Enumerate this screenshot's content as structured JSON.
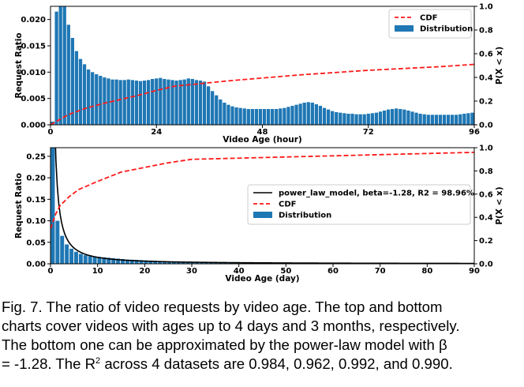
{
  "chart_data": [
    {
      "type": "bar",
      "xlabel": "Video Age (hour)",
      "ylabel": "Request Ratio",
      "y2label": "P(X < x)",
      "xlim": [
        0,
        96
      ],
      "ylim": [
        0,
        0.0225
      ],
      "y2lim": [
        0,
        1.0
      ],
      "xticks": [
        {
          "value": 0,
          "label": "0"
        },
        {
          "value": 24,
          "label": "24"
        },
        {
          "value": 48,
          "label": "48"
        },
        {
          "value": 72,
          "label": "72"
        },
        {
          "value": 96,
          "label": "96"
        }
      ],
      "yticks": [
        {
          "value": 0,
          "label": "0.000"
        },
        {
          "value": 0.005,
          "label": "0.005"
        },
        {
          "value": 0.01,
          "label": "0.010"
        },
        {
          "value": 0.015,
          "label": "0.015"
        },
        {
          "value": 0.02,
          "label": "0.020"
        }
      ],
      "y2ticks": [
        {
          "value": 0,
          "label": "0.0"
        },
        {
          "value": 0.2,
          "label": "0.2"
        },
        {
          "value": 0.4,
          "label": "0.4"
        },
        {
          "value": 0.6,
          "label": "0.6"
        },
        {
          "value": 0.8,
          "label": "0.8"
        },
        {
          "value": 1.0,
          "label": "1.0"
        }
      ],
      "legend_position": "top-right",
      "series": [
        {
          "name": "CDF",
          "kind": "line",
          "axis": "right",
          "style": "dashed",
          "color": "#ff1a1a",
          "x": [
            0,
            4,
            8,
            12,
            16,
            20,
            24,
            28,
            32,
            36,
            40,
            48,
            56,
            64,
            72,
            80,
            88,
            96
          ],
          "y": [
            0.0,
            0.085,
            0.14,
            0.18,
            0.215,
            0.25,
            0.29,
            0.325,
            0.34,
            0.355,
            0.37,
            0.395,
            0.42,
            0.44,
            0.46,
            0.475,
            0.49,
            0.51
          ]
        },
        {
          "name": "Distribution",
          "kind": "bar",
          "axis": "left",
          "color": "#1f77b4",
          "values": [
            0.0006,
            0.0215,
            0.0235,
            0.0225,
            0.019,
            0.0165,
            0.014,
            0.0125,
            0.0115,
            0.0105,
            0.01,
            0.0096,
            0.0093,
            0.009,
            0.0088,
            0.0086,
            0.0086,
            0.0085,
            0.0085,
            0.0086,
            0.0085,
            0.0084,
            0.0083,
            0.0084,
            0.0085,
            0.0087,
            0.0088,
            0.0089,
            0.0087,
            0.0086,
            0.0085,
            0.0084,
            0.0085,
            0.0086,
            0.0088,
            0.0087,
            0.0085,
            0.0084,
            0.0082,
            0.0073,
            0.0064,
            0.0056,
            0.0048,
            0.0042,
            0.0038,
            0.0035,
            0.0033,
            0.0032,
            0.0031,
            0.003,
            0.003,
            0.003,
            0.003,
            0.003,
            0.003,
            0.003,
            0.003,
            0.0031,
            0.0032,
            0.0034,
            0.0036,
            0.0038,
            0.004,
            0.0042,
            0.0043,
            0.0042,
            0.0039,
            0.0036,
            0.0032,
            0.0029,
            0.0026,
            0.0024,
            0.0023,
            0.0022,
            0.0021,
            0.0021,
            0.002,
            0.002,
            0.002,
            0.0021,
            0.0022,
            0.0023,
            0.0025,
            0.0027,
            0.0029,
            0.003,
            0.0031,
            0.003,
            0.0029,
            0.0027,
            0.0025,
            0.0023,
            0.0021,
            0.002,
            0.0019,
            0.0019,
            0.0019,
            0.0019,
            0.0019,
            0.0019,
            0.0019,
            0.0019,
            0.002,
            0.0021,
            0.0022,
            0.0023
          ]
        }
      ]
    },
    {
      "type": "bar",
      "xlabel": "Video Age (day)",
      "ylabel": "Request Ratio",
      "y2label": "P(X < x)",
      "xlim": [
        0,
        90
      ],
      "ylim": [
        0,
        0.27
      ],
      "y2lim": [
        0,
        1.0
      ],
      "xticks": [
        {
          "value": 0,
          "label": "0"
        },
        {
          "value": 10,
          "label": "10"
        },
        {
          "value": 20,
          "label": "20"
        },
        {
          "value": 30,
          "label": "30"
        },
        {
          "value": 40,
          "label": "40"
        },
        {
          "value": 50,
          "label": "50"
        },
        {
          "value": 60,
          "label": "60"
        },
        {
          "value": 70,
          "label": "70"
        },
        {
          "value": 80,
          "label": "80"
        },
        {
          "value": 90,
          "label": "90"
        }
      ],
      "yticks": [
        {
          "value": 0,
          "label": "0.00"
        },
        {
          "value": 0.05,
          "label": "0.05"
        },
        {
          "value": 0.1,
          "label": "0.10"
        },
        {
          "value": 0.15,
          "label": "0.15"
        },
        {
          "value": 0.2,
          "label": "0.20"
        },
        {
          "value": 0.25,
          "label": "0.25"
        }
      ],
      "y2ticks": [
        {
          "value": 0,
          "label": "0.0"
        },
        {
          "value": 0.2,
          "label": "0.2"
        },
        {
          "value": 0.4,
          "label": "0.4"
        },
        {
          "value": 0.6,
          "label": "0.6"
        },
        {
          "value": 0.8,
          "label": "0.8"
        },
        {
          "value": 1.0,
          "label": "1.0"
        }
      ],
      "legend_position": "center-right",
      "series": [
        {
          "name": "power_law_model, beta=-1.28, R2 = 98.96%",
          "kind": "line",
          "axis": "left",
          "style": "solid",
          "color": "#000000",
          "x": [
            0.3,
            0.6,
            1,
            1.5,
            2,
            3,
            4,
            5,
            6,
            8,
            10,
            15,
            20,
            30,
            45,
            60,
            90
          ],
          "y": [
            0.27,
            0.2,
            0.145,
            0.103,
            0.08,
            0.056,
            0.043,
            0.034,
            0.029,
            0.022,
            0.017,
            0.011,
            0.008,
            0.005,
            0.0031,
            0.0022,
            0.0013
          ]
        },
        {
          "name": "CDF",
          "kind": "line",
          "axis": "right",
          "style": "dashed",
          "color": "#ff1a1a",
          "x": [
            0,
            1,
            2,
            4,
            6,
            10,
            15,
            20,
            25,
            30,
            40,
            50,
            60,
            70,
            80,
            90
          ],
          "y": [
            0.3,
            0.42,
            0.5,
            0.58,
            0.64,
            0.71,
            0.79,
            0.83,
            0.87,
            0.9,
            0.91,
            0.92,
            0.93,
            0.94,
            0.95,
            0.96
          ]
        },
        {
          "name": "Distribution",
          "kind": "bar",
          "axis": "left",
          "color": "#1f77b4",
          "values": [
            0.27,
            0.1,
            0.065,
            0.045,
            0.035,
            0.028,
            0.023,
            0.02,
            0.018,
            0.017,
            0.016,
            0.015,
            0.014,
            0.013,
            0.012,
            0.011,
            0.01,
            0.0095,
            0.009,
            0.0085,
            0.008,
            0.0075,
            0.007,
            0.0065,
            0.006,
            0.0055,
            0.005,
            0.0045,
            0.004,
            0.0035,
            0.003,
            0.0028,
            0.0026,
            0.0024,
            0.0022,
            0.0021,
            0.002,
            0.0019,
            0.0018,
            0.0017,
            0.0016,
            0.0015,
            0.0015,
            0.0014,
            0.0014,
            0.0013,
            0.0013,
            0.0012,
            0.0012,
            0.0012,
            0.0011,
            0.0011,
            0.0011,
            0.001,
            0.001,
            0.001,
            0.001,
            0.0009,
            0.0009,
            0.0009,
            0.0009,
            0.0009,
            0.0008,
            0.0008,
            0.0008,
            0.0008,
            0.0008,
            0.0008,
            0.0007,
            0.0007,
            0.0007,
            0.0007,
            0.0007,
            0.0007,
            0.0007,
            0.0006,
            0.0006,
            0.0006,
            0.0006,
            0.0006,
            0.0006,
            0.0006,
            0.0006,
            0.0006,
            0.0005,
            0.0005,
            0.0005,
            0.0005,
            0.0005,
            0.0005,
            0.0005
          ]
        }
      ]
    }
  ],
  "caption": {
    "line1": "Fig. 7.  The ratio of video requests by video age. The top and bottom",
    "line2": "charts cover videos with ages up to 4 days and 3 months, respectively.",
    "line3": "The bottom one can be approximated by the power-law model with β",
    "line4_pre": "= -1.28. The R",
    "line4_sup": "2",
    "line4_post": " across 4 datasets are 0.984, 0.962, 0.992, and 0.990."
  }
}
